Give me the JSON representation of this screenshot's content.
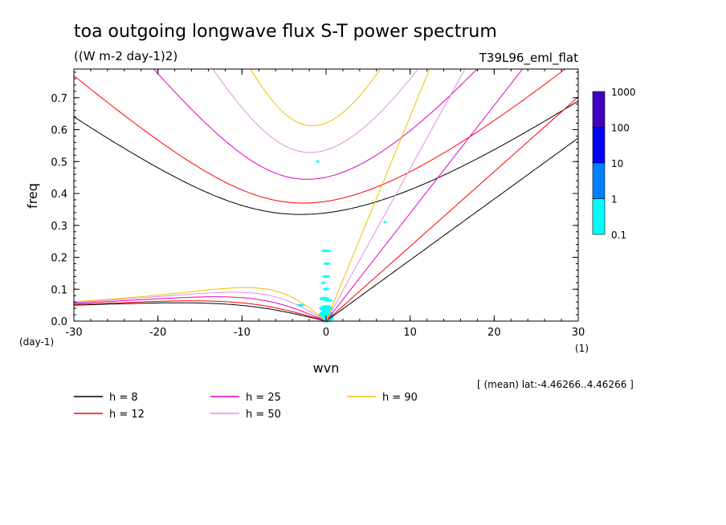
{
  "chart_data": {
    "type": "line",
    "title": "toa outgoing longwave flux S-T power spectrum",
    "subtitle": "((W m-2 day-1)2)",
    "experiment": "T39L96_eml_flat",
    "xlabel": "wvn",
    "ylabel": "freq",
    "x_unit_label": "(1)",
    "y_unit_label": "(day-1)",
    "xlim": [
      -30,
      30
    ],
    "ylim": [
      0,
      0.79
    ],
    "x_ticks": [
      "-30",
      "-20",
      "-10",
      "0",
      "10",
      "20",
      "30"
    ],
    "y_ticks": [
      "0.0",
      "0.1",
      "0.2",
      "0.3",
      "0.4",
      "0.5",
      "0.6",
      "0.7"
    ],
    "footnote": "[ (mean) lat:-4.46266..4.46266 ]",
    "colorbar": {
      "levels": [
        "0.1",
        "1",
        "10",
        "100",
        "1000"
      ],
      "colors": [
        "#00ffff",
        "#0080ff",
        "#0000ff",
        "#4000c0"
      ]
    },
    "series": [
      {
        "name": "h =  8",
        "h": 8,
        "color": "#000000"
      },
      {
        "name": "h = 12",
        "h": 12,
        "color": "#ff0000"
      },
      {
        "name": "h = 25",
        "h": 25,
        "color": "#e000c0"
      },
      {
        "name": "h = 50",
        "h": 50,
        "color": "#e090e0"
      },
      {
        "name": "h = 90",
        "h": 90,
        "color": "#f0c000"
      }
    ]
  }
}
